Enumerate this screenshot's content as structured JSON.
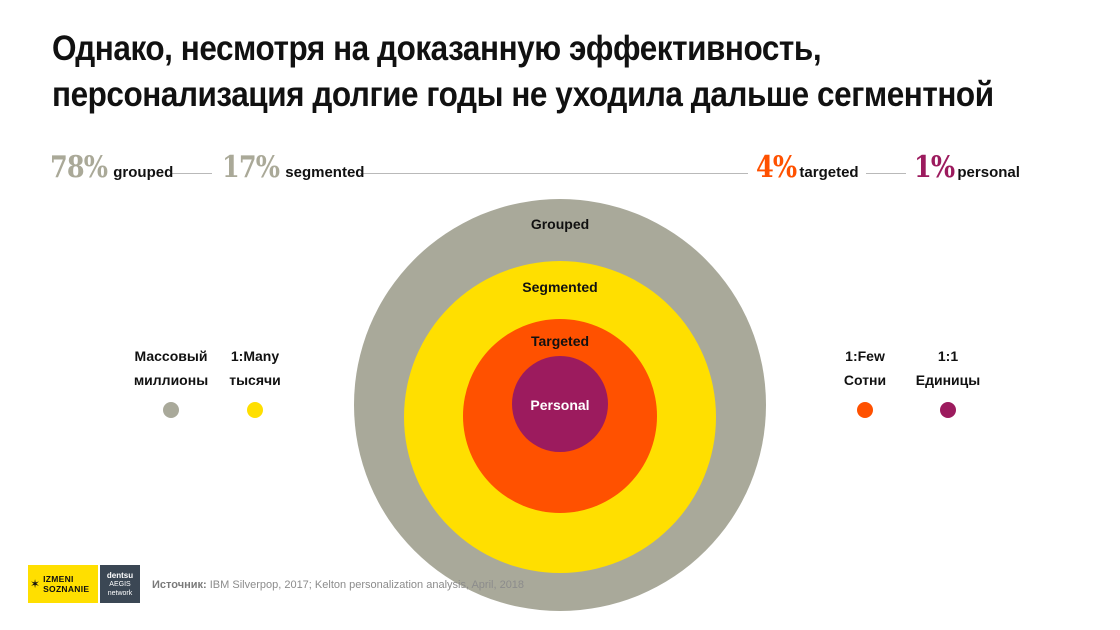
{
  "title": {
    "line1": "Однако, несмотря на доказанную эффективность,",
    "line2": "персонализация долгие годы не уходила дальше сегментной"
  },
  "stats": [
    {
      "pct": "78%",
      "label": "grouped",
      "color": "#aaa998"
    },
    {
      "pct": "17%",
      "label": "segmented",
      "color": "#aaa998"
    },
    {
      "pct": "4%",
      "label": "targeted",
      "color": "#ff5100"
    },
    {
      "pct": "1%",
      "label": "personal",
      "color": "#9c1b5e"
    }
  ],
  "rings": [
    {
      "label": "Grouped",
      "color": "#a9a99a"
    },
    {
      "label": "Segmented",
      "color": "#ffdf00"
    },
    {
      "label": "Targeted",
      "color": "#ff5100"
    },
    {
      "label": "Personal",
      "color": "#9c1b5e",
      "label_color": "#ffffff"
    }
  ],
  "side_labels": {
    "mass": {
      "line1": "Массовый",
      "line2": "миллионы",
      "color": "#a9a99a"
    },
    "many": {
      "line1": "1:Many",
      "line2": "тысячи",
      "color": "#ffdf00"
    },
    "few": {
      "line1": "1:Few",
      "line2": "Сотни",
      "color": "#ff5100"
    },
    "one": {
      "line1": "1:1",
      "line2": "Единицы",
      "color": "#9c1b5e"
    }
  },
  "footer": {
    "logo1_text": [
      "IZMENI",
      "SOZNANIE"
    ],
    "logo2_text": [
      "dentsu",
      "AEGIS",
      "network"
    ],
    "source_label": "Источник:",
    "source_text": "IBM Silverpop, 2017; Kelton personalization analysis, April, 2018"
  }
}
